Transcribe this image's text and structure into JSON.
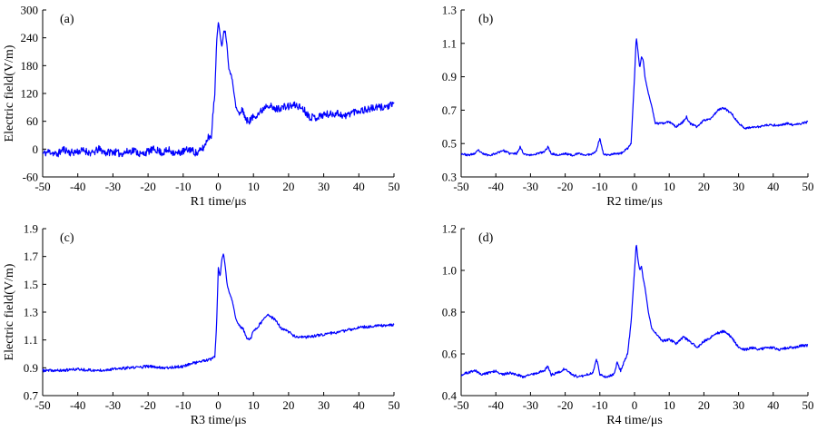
{
  "colors": {
    "series": "#0000ff",
    "axis": "#000000",
    "background": "#ffffff"
  },
  "chart_data": [
    {
      "type": "line",
      "panel_label": "(a)",
      "xlabel": "R1 time/μs",
      "ylabel": "Electric field(V/m)",
      "xlim": [
        -50,
        50
      ],
      "ylim": [
        -60,
        300
      ],
      "xticks": [
        -50,
        -40,
        -30,
        -20,
        -10,
        0,
        10,
        20,
        30,
        40,
        50
      ],
      "yticks": [
        -60,
        0,
        60,
        120,
        180,
        240,
        300
      ],
      "grid": false,
      "legend": "none",
      "noise": {
        "amp": 16,
        "seed": 11
      },
      "series": [
        {
          "x": [
            -50,
            -48,
            -46,
            -44,
            -42,
            -40,
            -38,
            -36,
            -34,
            -32,
            -30,
            -28,
            -26,
            -24,
            -22,
            -20,
            -18,
            -16,
            -14,
            -12,
            -10,
            -8,
            -6,
            -4,
            -3,
            -2,
            -1,
            -0.5,
            0,
            0.5,
            1,
            1.5,
            2,
            2.5,
            3,
            4,
            5,
            6,
            7,
            8,
            9,
            10,
            12,
            14,
            16,
            18,
            20,
            22,
            24,
            26,
            28,
            30,
            32,
            34,
            36,
            38,
            40,
            42,
            44,
            46,
            48,
            50
          ],
          "y": [
            -10,
            -5,
            -12,
            0,
            -8,
            -5,
            -3,
            -10,
            0,
            -8,
            -5,
            -10,
            -6,
            -2,
            -12,
            -5,
            0,
            -8,
            -2,
            -10,
            -5,
            0,
            -10,
            5,
            25,
            30,
            120,
            230,
            272,
            250,
            220,
            252,
            255,
            220,
            175,
            150,
            90,
            75,
            85,
            60,
            62,
            70,
            80,
            98,
            85,
            90,
            92,
            95,
            88,
            70,
            68,
            75,
            75,
            78,
            70,
            80,
            83,
            85,
            88,
            90,
            92,
            95
          ]
        }
      ]
    },
    {
      "type": "line",
      "panel_label": "(b)",
      "xlabel": "R2 time/μs",
      "ylabel": "",
      "xlim": [
        -50,
        50
      ],
      "ylim": [
        0.3,
        1.3
      ],
      "xticks": [
        -50,
        -40,
        -30,
        -20,
        -10,
        0,
        10,
        20,
        30,
        40,
        50
      ],
      "yticks": [
        0.3,
        0.5,
        0.7,
        0.9,
        1.1,
        1.3
      ],
      "grid": false,
      "legend": "none",
      "noise": {
        "amp": 0.012,
        "seed": 23
      },
      "series": [
        {
          "x": [
            -50,
            -48,
            -46,
            -45,
            -44,
            -42,
            -40,
            -38,
            -36,
            -34,
            -33,
            -32,
            -30,
            -28,
            -26,
            -25,
            -24,
            -22,
            -20,
            -18,
            -16,
            -14,
            -12,
            -11,
            -10,
            -9,
            -8,
            -6,
            -4,
            -2,
            -1,
            0,
            0.5,
            1,
            1.5,
            2,
            2.5,
            3,
            4,
            5,
            6,
            8,
            10,
            12,
            14,
            15,
            16,
            18,
            20,
            22,
            24,
            25,
            26,
            28,
            30,
            32,
            34,
            36,
            38,
            40,
            42,
            44,
            46,
            48,
            50
          ],
          "y": [
            0.44,
            0.43,
            0.44,
            0.46,
            0.44,
            0.43,
            0.44,
            0.46,
            0.44,
            0.44,
            0.48,
            0.44,
            0.43,
            0.44,
            0.45,
            0.48,
            0.44,
            0.43,
            0.44,
            0.43,
            0.44,
            0.43,
            0.44,
            0.46,
            0.53,
            0.44,
            0.43,
            0.44,
            0.44,
            0.47,
            0.5,
            0.9,
            1.14,
            1.05,
            0.95,
            1.02,
            1.0,
            0.9,
            0.8,
            0.72,
            0.62,
            0.62,
            0.63,
            0.6,
            0.63,
            0.66,
            0.62,
            0.6,
            0.64,
            0.65,
            0.7,
            0.71,
            0.71,
            0.68,
            0.62,
            0.59,
            0.6,
            0.6,
            0.61,
            0.61,
            0.61,
            0.62,
            0.61,
            0.62,
            0.63
          ]
        }
      ]
    },
    {
      "type": "line",
      "panel_label": "(c)",
      "xlabel": "R3 time/μs",
      "ylabel": "Electric field(V/m)",
      "xlim": [
        -50,
        50
      ],
      "ylim": [
        0.7,
        1.9
      ],
      "xticks": [
        -50,
        -40,
        -30,
        -20,
        -10,
        0,
        10,
        20,
        30,
        40,
        50
      ],
      "yticks": [
        0.7,
        0.9,
        1.1,
        1.3,
        1.5,
        1.7,
        1.9
      ],
      "grid": false,
      "legend": "none",
      "noise": {
        "amp": 0.02,
        "seed": 37
      },
      "series": [
        {
          "x": [
            -50,
            -45,
            -40,
            -35,
            -30,
            -25,
            -20,
            -15,
            -10,
            -8,
            -6,
            -4,
            -2,
            -1,
            -0.5,
            0,
            0.5,
            1,
            1.5,
            2,
            2.5,
            3,
            4,
            5,
            6,
            7,
            8,
            9,
            10,
            12,
            14,
            16,
            18,
            20,
            22,
            25,
            30,
            35,
            40,
            45,
            50
          ],
          "y": [
            0.88,
            0.88,
            0.89,
            0.88,
            0.89,
            0.9,
            0.91,
            0.9,
            0.91,
            0.93,
            0.94,
            0.95,
            0.96,
            0.98,
            1.2,
            1.62,
            1.55,
            1.68,
            1.72,
            1.62,
            1.5,
            1.45,
            1.38,
            1.25,
            1.2,
            1.18,
            1.12,
            1.1,
            1.16,
            1.22,
            1.28,
            1.25,
            1.18,
            1.16,
            1.12,
            1.12,
            1.14,
            1.16,
            1.19,
            1.2,
            1.21
          ]
        }
      ]
    },
    {
      "type": "line",
      "panel_label": "(d)",
      "xlabel": "R4 time/μs",
      "ylabel": "",
      "xlim": [
        -50,
        50
      ],
      "ylim": [
        0.4,
        1.2
      ],
      "xticks": [
        -50,
        -40,
        -30,
        -20,
        -10,
        0,
        10,
        20,
        30,
        40,
        50
      ],
      "yticks": [
        0.4,
        0.6,
        0.8,
        1.0,
        1.2
      ],
      "grid": false,
      "legend": "none",
      "noise": {
        "amp": 0.012,
        "seed": 51
      },
      "series": [
        {
          "x": [
            -50,
            -48,
            -46,
            -44,
            -42,
            -40,
            -38,
            -36,
            -34,
            -32,
            -30,
            -28,
            -26,
            -25,
            -24,
            -22,
            -20,
            -18,
            -16,
            -14,
            -12,
            -11,
            -10,
            -8,
            -6,
            -5,
            -4,
            -2,
            -1,
            0,
            0.5,
            1,
            1.5,
            2,
            2.5,
            3,
            4,
            5,
            6,
            8,
            10,
            12,
            14,
            16,
            18,
            20,
            22,
            24,
            26,
            28,
            30,
            32,
            34,
            36,
            38,
            40,
            42,
            44,
            46,
            48,
            50
          ],
          "y": [
            0.5,
            0.51,
            0.52,
            0.5,
            0.51,
            0.52,
            0.5,
            0.51,
            0.5,
            0.49,
            0.5,
            0.51,
            0.52,
            0.54,
            0.5,
            0.51,
            0.53,
            0.5,
            0.49,
            0.5,
            0.51,
            0.58,
            0.5,
            0.49,
            0.5,
            0.56,
            0.52,
            0.6,
            0.75,
            1.0,
            1.13,
            1.05,
            1.0,
            1.02,
            0.96,
            0.92,
            0.8,
            0.72,
            0.7,
            0.66,
            0.67,
            0.65,
            0.68,
            0.66,
            0.63,
            0.66,
            0.68,
            0.7,
            0.71,
            0.68,
            0.63,
            0.62,
            0.63,
            0.62,
            0.63,
            0.63,
            0.62,
            0.63,
            0.63,
            0.64,
            0.64
          ]
        }
      ]
    }
  ]
}
